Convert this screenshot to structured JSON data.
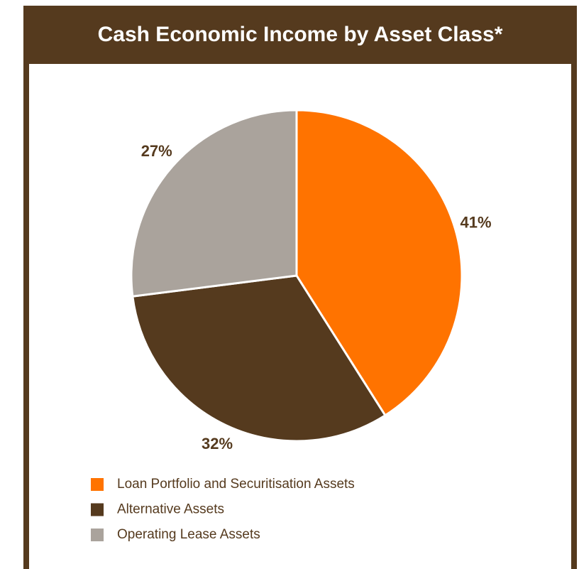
{
  "chart_data": {
    "type": "pie",
    "title": "Cash Economic Income by Asset Class*",
    "categories": [
      "Loan Portfolio and Securitisation Assets",
      "Alternative Assets",
      "Operating Lease Assets"
    ],
    "values": [
      41,
      32,
      27
    ],
    "value_labels": [
      "41%",
      "32%",
      "27%"
    ],
    "colors": [
      "#ff7300",
      "#553a1e",
      "#aaa39c"
    ]
  }
}
